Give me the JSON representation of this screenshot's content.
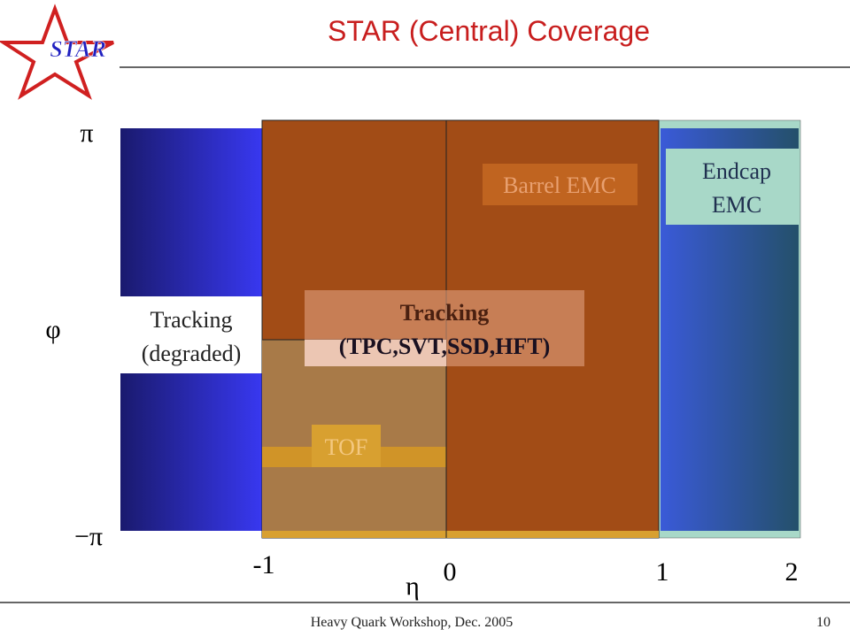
{
  "logo": "STAR",
  "title": "STAR (Central) Coverage",
  "axes": {
    "y_top": "π",
    "y_label": "φ",
    "y_bottom": "−π",
    "x_ticks": [
      "-1",
      "0",
      "1",
      "2"
    ],
    "x_label": "η"
  },
  "regions": {
    "barrel_emc": "Barrel EMC",
    "endcap_emc": [
      "Endcap",
      "EMC"
    ],
    "tracking_degraded": [
      "Tracking",
      "(degraded)"
    ],
    "tracking": [
      "Tracking",
      "(TPC,SVT,SSD,HFT)"
    ],
    "tof": "TOF"
  },
  "footer": {
    "text": "Heavy Quark Workshop, Dec. 2005",
    "page": "10"
  }
}
